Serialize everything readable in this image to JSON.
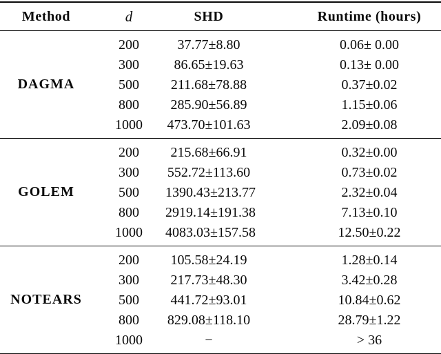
{
  "table": {
    "columns": {
      "method": "Method",
      "d": "d",
      "shd": "SHD",
      "runtime": "Runtime (hours)"
    },
    "groups": [
      {
        "method": "DAGMA",
        "rows": [
          {
            "d": "200",
            "shd": "37.77±8.80",
            "runtime": "0.06± 0.00"
          },
          {
            "d": "300",
            "shd": "86.65±19.63",
            "runtime": "0.13± 0.00"
          },
          {
            "d": "500",
            "shd": "211.68±78.88",
            "runtime": "0.37±0.02"
          },
          {
            "d": "800",
            "shd": "285.90±56.89",
            "runtime": "1.15±0.06"
          },
          {
            "d": "1000",
            "shd": "473.70±101.63",
            "runtime": "2.09±0.08"
          }
        ]
      },
      {
        "method": "GOLEM",
        "rows": [
          {
            "d": "200",
            "shd": "215.68±66.91",
            "runtime": "0.32±0.00"
          },
          {
            "d": "300",
            "shd": "552.72±113.60",
            "runtime": "0.73±0.02"
          },
          {
            "d": "500",
            "shd": "1390.43±213.77",
            "runtime": "2.32±0.04"
          },
          {
            "d": "800",
            "shd": "2919.14±191.38",
            "runtime": "7.13±0.10"
          },
          {
            "d": "1000",
            "shd": "4083.03±157.58",
            "runtime": "12.50±0.22"
          }
        ]
      },
      {
        "method": "NOTEARS",
        "rows": [
          {
            "d": "200",
            "shd": "105.58±24.19",
            "runtime": "1.28±0.14"
          },
          {
            "d": "300",
            "shd": "217.73±48.30",
            "runtime": "3.42±0.28"
          },
          {
            "d": "500",
            "shd": "441.72±93.01",
            "runtime": "10.84±0.62"
          },
          {
            "d": "800",
            "shd": "829.08±118.10",
            "runtime": "28.79±1.22"
          },
          {
            "d": "1000",
            "shd": "−",
            "runtime": "> 36"
          }
        ]
      }
    ]
  }
}
